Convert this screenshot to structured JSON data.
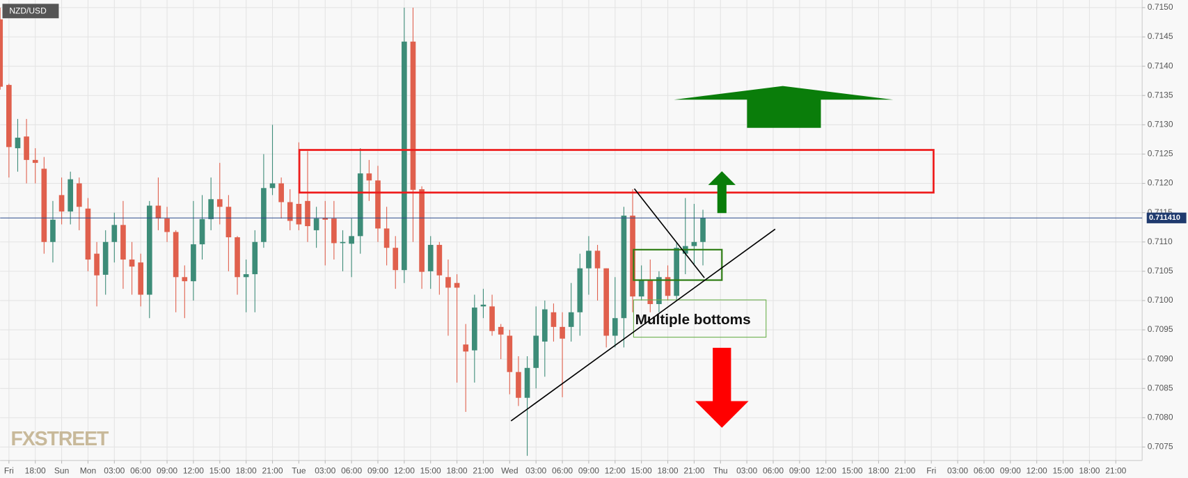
{
  "chart_data": {
    "type": "candlestick",
    "title": "NZD/USD",
    "annotation": "Multiple bottoms",
    "logo": "FXSTREET",
    "up_color": "#3d8c78",
    "down_color": "#e0604d",
    "grid": true,
    "last_price": {
      "value": 0.71141,
      "label": "0.711410"
    },
    "xlim": [
      -10,
      120
    ],
    "ylim": [
      0.70727,
      0.71513
    ],
    "yticks": [
      {
        "value": 0.7075,
        "label": "0.7075"
      },
      {
        "value": 0.708,
        "label": "0.7080"
      },
      {
        "value": 0.7085,
        "label": "0.7085"
      },
      {
        "value": 0.709,
        "label": "0.7090"
      },
      {
        "value": 0.7095,
        "label": "0.7095"
      },
      {
        "value": 0.71,
        "label": "0.7100"
      },
      {
        "value": 0.7105,
        "label": "0.7105"
      },
      {
        "value": 0.711,
        "label": "0.7110"
      },
      {
        "value": 0.7115,
        "label": "0.7115"
      },
      {
        "value": 0.712,
        "label": "0.7120"
      },
      {
        "value": 0.7125,
        "label": "0.7125"
      },
      {
        "value": 0.713,
        "label": "0.7130"
      },
      {
        "value": 0.7135,
        "label": "0.7135"
      },
      {
        "value": 0.714,
        "label": "0.7140"
      },
      {
        "value": 0.7145,
        "label": "0.7145"
      },
      {
        "value": 0.715,
        "label": "0.7150"
      }
    ],
    "xticks": [
      {
        "value": -9,
        "label": "Fri"
      },
      {
        "value": -6,
        "label": "18:00"
      },
      {
        "value": -3,
        "label": "Sun"
      },
      {
        "value": 0,
        "label": "Mon"
      },
      {
        "value": 3,
        "label": "03:00"
      },
      {
        "value": 6,
        "label": "06:00"
      },
      {
        "value": 9,
        "label": "09:00"
      },
      {
        "value": 12,
        "label": "12:00"
      },
      {
        "value": 15,
        "label": "15:00"
      },
      {
        "value": 18,
        "label": "18:00"
      },
      {
        "value": 21,
        "label": "21:00"
      },
      {
        "value": 24,
        "label": "Tue"
      },
      {
        "value": 27,
        "label": "03:00"
      },
      {
        "value": 30,
        "label": "06:00"
      },
      {
        "value": 33,
        "label": "09:00"
      },
      {
        "value": 36,
        "label": "12:00"
      },
      {
        "value": 39,
        "label": "15:00"
      },
      {
        "value": 42,
        "label": "18:00"
      },
      {
        "value": 45,
        "label": "21:00"
      },
      {
        "value": 48,
        "label": "Wed"
      },
      {
        "value": 51,
        "label": "03:00"
      },
      {
        "value": 54,
        "label": "06:00"
      },
      {
        "value": 57,
        "label": "09:00"
      },
      {
        "value": 60,
        "label": "12:00"
      },
      {
        "value": 63,
        "label": "15:00"
      },
      {
        "value": 66,
        "label": "18:00"
      },
      {
        "value": 69,
        "label": "21:00"
      },
      {
        "value": 72,
        "label": "Thu"
      },
      {
        "value": 75,
        "label": "03:00"
      },
      {
        "value": 78,
        "label": "06:00"
      },
      {
        "value": 81,
        "label": "09:00"
      },
      {
        "value": 84,
        "label": "12:00"
      },
      {
        "value": 87,
        "label": "15:00"
      },
      {
        "value": 90,
        "label": "18:00"
      },
      {
        "value": 93,
        "label": "21:00"
      },
      {
        "value": 96,
        "label": "Fri"
      },
      {
        "value": 99,
        "label": "03:00"
      },
      {
        "value": 102,
        "label": "06:00"
      },
      {
        "value": 105,
        "label": "09:00"
      },
      {
        "value": 108,
        "label": "12:00"
      },
      {
        "value": 111,
        "label": "15:00"
      },
      {
        "value": 114,
        "label": "18:00"
      },
      {
        "value": 117,
        "label": "21:00"
      }
    ],
    "candles": [
      {
        "x": -10,
        "open": 0.7148,
        "high": 0.715,
        "low": 0.7136,
        "close": 0.71365
      },
      {
        "x": -9,
        "open": 0.71368,
        "high": 0.7137,
        "low": 0.7121,
        "close": 0.71262
      },
      {
        "x": -8,
        "open": 0.7126,
        "high": 0.7131,
        "low": 0.7122,
        "close": 0.71278
      },
      {
        "x": -7,
        "open": 0.7128,
        "high": 0.7131,
        "low": 0.712,
        "close": 0.7124
      },
      {
        "x": -6,
        "open": 0.7124,
        "high": 0.7126,
        "low": 0.712,
        "close": 0.71235
      },
      {
        "x": -5,
        "open": 0.71225,
        "high": 0.71245,
        "low": 0.7108,
        "close": 0.711
      },
      {
        "x": -4,
        "open": 0.711,
        "high": 0.7117,
        "low": 0.71065,
        "close": 0.71138
      },
      {
        "x": -3,
        "open": 0.7118,
        "high": 0.7121,
        "low": 0.7113,
        "close": 0.71152
      },
      {
        "x": -2,
        "open": 0.71152,
        "high": 0.7122,
        "low": 0.7113,
        "close": 0.71207
      },
      {
        "x": -1,
        "open": 0.712,
        "high": 0.7121,
        "low": 0.7112,
        "close": 0.7116
      },
      {
        "x": 0,
        "open": 0.71157,
        "high": 0.71175,
        "low": 0.7105,
        "close": 0.7107
      },
      {
        "x": 1,
        "open": 0.7108,
        "high": 0.711,
        "low": 0.7099,
        "close": 0.71043
      },
      {
        "x": 2,
        "open": 0.71044,
        "high": 0.7112,
        "low": 0.7101,
        "close": 0.711
      },
      {
        "x": 3,
        "open": 0.711,
        "high": 0.7115,
        "low": 0.71065,
        "close": 0.71129
      },
      {
        "x": 4,
        "open": 0.71129,
        "high": 0.7117,
        "low": 0.7102,
        "close": 0.7107
      },
      {
        "x": 5,
        "open": 0.7107,
        "high": 0.711,
        "low": 0.7101,
        "close": 0.71058
      },
      {
        "x": 6,
        "open": 0.71065,
        "high": 0.7108,
        "low": 0.7099,
        "close": 0.7101
      },
      {
        "x": 7,
        "open": 0.7101,
        "high": 0.7117,
        "low": 0.7097,
        "close": 0.71162
      },
      {
        "x": 8,
        "open": 0.71162,
        "high": 0.7121,
        "low": 0.7112,
        "close": 0.7114
      },
      {
        "x": 9,
        "open": 0.7114,
        "high": 0.7116,
        "low": 0.711,
        "close": 0.71117
      },
      {
        "x": 10,
        "open": 0.71117,
        "high": 0.7112,
        "low": 0.7098,
        "close": 0.7104
      },
      {
        "x": 11,
        "open": 0.7104,
        "high": 0.7106,
        "low": 0.7097,
        "close": 0.71033
      },
      {
        "x": 12,
        "open": 0.71033,
        "high": 0.7117,
        "low": 0.71,
        "close": 0.71096
      },
      {
        "x": 13,
        "open": 0.71096,
        "high": 0.7118,
        "low": 0.7107,
        "close": 0.71139
      },
      {
        "x": 14,
        "open": 0.71139,
        "high": 0.7121,
        "low": 0.7112,
        "close": 0.71173
      },
      {
        "x": 15,
        "open": 0.71173,
        "high": 0.71235,
        "low": 0.7113,
        "close": 0.7116
      },
      {
        "x": 16,
        "open": 0.7116,
        "high": 0.7118,
        "low": 0.7105,
        "close": 0.71108
      },
      {
        "x": 17,
        "open": 0.71108,
        "high": 0.7111,
        "low": 0.7101,
        "close": 0.7104
      },
      {
        "x": 18,
        "open": 0.7104,
        "high": 0.7107,
        "low": 0.7098,
        "close": 0.71045
      },
      {
        "x": 19,
        "open": 0.71045,
        "high": 0.7112,
        "low": 0.7098,
        "close": 0.711
      },
      {
        "x": 20,
        "open": 0.711,
        "high": 0.7125,
        "low": 0.7109,
        "close": 0.71192
      },
      {
        "x": 21,
        "open": 0.71192,
        "high": 0.713,
        "low": 0.7118,
        "close": 0.712
      },
      {
        "x": 22,
        "open": 0.712,
        "high": 0.7121,
        "low": 0.7114,
        "close": 0.71168
      },
      {
        "x": 23,
        "open": 0.71168,
        "high": 0.7119,
        "low": 0.7112,
        "close": 0.71136
      },
      {
        "x": 24,
        "open": 0.71165,
        "high": 0.7127,
        "low": 0.7112,
        "close": 0.7113
      },
      {
        "x": 25,
        "open": 0.7117,
        "high": 0.71255,
        "low": 0.711,
        "close": 0.71127
      },
      {
        "x": 26,
        "open": 0.7112,
        "high": 0.7116,
        "low": 0.7109,
        "close": 0.7114
      },
      {
        "x": 27,
        "open": 0.71141,
        "high": 0.7117,
        "low": 0.7106,
        "close": 0.71138
      },
      {
        "x": 28,
        "open": 0.7114,
        "high": 0.7117,
        "low": 0.7107,
        "close": 0.71098
      },
      {
        "x": 29,
        "open": 0.71098,
        "high": 0.7112,
        "low": 0.7105,
        "close": 0.711
      },
      {
        "x": 30,
        "open": 0.71097,
        "high": 0.7114,
        "low": 0.7104,
        "close": 0.7111
      },
      {
        "x": 31,
        "open": 0.7111,
        "high": 0.7126,
        "low": 0.7108,
        "close": 0.71217
      },
      {
        "x": 32,
        "open": 0.71217,
        "high": 0.7124,
        "low": 0.7117,
        "close": 0.71205
      },
      {
        "x": 33,
        "open": 0.71205,
        "high": 0.7123,
        "low": 0.711,
        "close": 0.71123
      },
      {
        "x": 34,
        "open": 0.71123,
        "high": 0.7116,
        "low": 0.7106,
        "close": 0.7109
      },
      {
        "x": 35,
        "open": 0.7109,
        "high": 0.7111,
        "low": 0.7102,
        "close": 0.71052
      },
      {
        "x": 36,
        "open": 0.71052,
        "high": 0.715,
        "low": 0.7103,
        "close": 0.71442
      },
      {
        "x": 37,
        "open": 0.71442,
        "high": 0.715,
        "low": 0.711,
        "close": 0.71189
      },
      {
        "x": 38,
        "open": 0.7119,
        "high": 0.71195,
        "low": 0.7102,
        "close": 0.71049
      },
      {
        "x": 39,
        "open": 0.7105,
        "high": 0.7111,
        "low": 0.7102,
        "close": 0.71095
      },
      {
        "x": 40,
        "open": 0.71095,
        "high": 0.711,
        "low": 0.7101,
        "close": 0.71043
      },
      {
        "x": 41,
        "open": 0.7104,
        "high": 0.7107,
        "low": 0.7094,
        "close": 0.71022
      },
      {
        "x": 42,
        "open": 0.7103,
        "high": 0.71045,
        "low": 0.7086,
        "close": 0.71022
      },
      {
        "x": 43,
        "open": 0.70925,
        "high": 0.7096,
        "low": 0.7081,
        "close": 0.70913
      },
      {
        "x": 44,
        "open": 0.70915,
        "high": 0.7101,
        "low": 0.7086,
        "close": 0.70988
      },
      {
        "x": 45,
        "open": 0.7099,
        "high": 0.7102,
        "low": 0.7097,
        "close": 0.70993
      },
      {
        "x": 46,
        "open": 0.7099,
        "high": 0.7101,
        "low": 0.7094,
        "close": 0.70948
      },
      {
        "x": 47,
        "open": 0.70955,
        "high": 0.7096,
        "low": 0.709,
        "close": 0.70942
      },
      {
        "x": 48,
        "open": 0.7094,
        "high": 0.7095,
        "low": 0.7084,
        "close": 0.70878
      },
      {
        "x": 49,
        "open": 0.70878,
        "high": 0.70905,
        "low": 0.7082,
        "close": 0.70834
      },
      {
        "x": 50,
        "open": 0.70834,
        "high": 0.70905,
        "low": 0.70735,
        "close": 0.70885
      },
      {
        "x": 51,
        "open": 0.70885,
        "high": 0.7099,
        "low": 0.7085,
        "close": 0.7094
      },
      {
        "x": 52,
        "open": 0.7093,
        "high": 0.71,
        "low": 0.7087,
        "close": 0.70985
      },
      {
        "x": 53,
        "open": 0.7098,
        "high": 0.70995,
        "low": 0.7093,
        "close": 0.70955
      },
      {
        "x": 54,
        "open": 0.70955,
        "high": 0.7098,
        "low": 0.70835,
        "close": 0.70935
      },
      {
        "x": 55,
        "open": 0.70955,
        "high": 0.7103,
        "low": 0.7093,
        "close": 0.7098
      },
      {
        "x": 56,
        "open": 0.7098,
        "high": 0.7108,
        "low": 0.7094,
        "close": 0.71055
      },
      {
        "x": 57,
        "open": 0.71055,
        "high": 0.7111,
        "low": 0.7101,
        "close": 0.71085
      },
      {
        "x": 58,
        "open": 0.71085,
        "high": 0.71095,
        "low": 0.71,
        "close": 0.71055
      },
      {
        "x": 59,
        "open": 0.71055,
        "high": 0.71055,
        "low": 0.7092,
        "close": 0.7094
      },
      {
        "x": 60,
        "open": 0.7094,
        "high": 0.7104,
        "low": 0.7092,
        "close": 0.7097
      },
      {
        "x": 61,
        "open": 0.7097,
        "high": 0.7116,
        "low": 0.7092,
        "close": 0.71145
      },
      {
        "x": 62,
        "open": 0.71145,
        "high": 0.7119,
        "low": 0.7098,
        "close": 0.71007
      },
      {
        "x": 63,
        "open": 0.71007,
        "high": 0.7106,
        "low": 0.71,
        "close": 0.71035
      },
      {
        "x": 64,
        "open": 0.71035,
        "high": 0.7107,
        "low": 0.7098,
        "close": 0.70994
      },
      {
        "x": 65,
        "open": 0.70994,
        "high": 0.7105,
        "low": 0.7098,
        "close": 0.7104
      },
      {
        "x": 66,
        "open": 0.7104,
        "high": 0.7106,
        "low": 0.71,
        "close": 0.71008
      },
      {
        "x": 67,
        "open": 0.71008,
        "high": 0.711,
        "low": 0.71,
        "close": 0.7109
      },
      {
        "x": 68,
        "open": 0.7108,
        "high": 0.71175,
        "low": 0.71045,
        "close": 0.71093
      },
      {
        "x": 69,
        "open": 0.71093,
        "high": 0.71165,
        "low": 0.7106,
        "close": 0.711
      },
      {
        "x": 70,
        "open": 0.711,
        "high": 0.71155,
        "low": 0.7106,
        "close": 0.71141
      }
    ]
  }
}
